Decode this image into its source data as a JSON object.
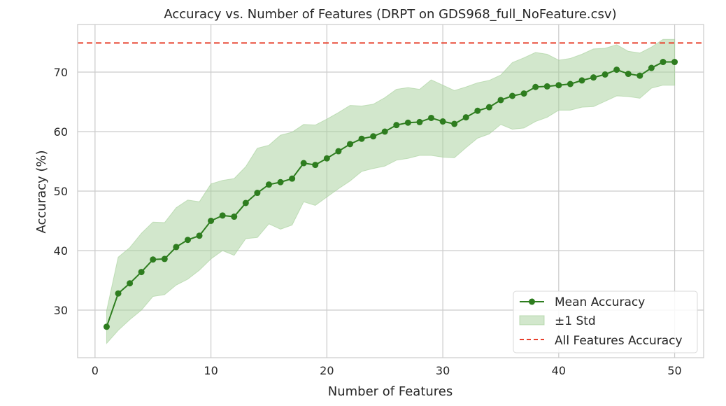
{
  "chart_data": {
    "type": "line",
    "title": "Accuracy vs. Number of Features (DRPT on GDS968_full_NoFeature.csv)",
    "xlabel": "Number of Features",
    "ylabel": "Accuracy (%)",
    "xlim": [
      -1.5,
      52.5
    ],
    "ylim": [
      22,
      78
    ],
    "xticks": [
      0,
      10,
      20,
      30,
      40,
      50
    ],
    "yticks": [
      30,
      40,
      50,
      60,
      70
    ],
    "grid": true,
    "legend_position": "bottom-right",
    "x": [
      1,
      2,
      3,
      4,
      5,
      6,
      7,
      8,
      9,
      10,
      11,
      12,
      13,
      14,
      15,
      16,
      17,
      18,
      19,
      20,
      21,
      22,
      23,
      24,
      25,
      26,
      27,
      28,
      29,
      30,
      31,
      32,
      33,
      34,
      35,
      36,
      37,
      38,
      39,
      40,
      41,
      42,
      43,
      44,
      45,
      46,
      47,
      48,
      49,
      50
    ],
    "series": [
      {
        "name": "Mean Accuracy",
        "color": "#2e7d1f",
        "marker": "circle",
        "values": [
          27.2,
          32.8,
          34.5,
          36.4,
          38.5,
          38.6,
          40.6,
          41.8,
          42.5,
          45.0,
          45.9,
          45.7,
          48.0,
          49.7,
          51.1,
          51.5,
          52.1,
          54.7,
          54.4,
          55.5,
          56.7,
          57.9,
          58.8,
          59.2,
          60.0,
          61.1,
          61.5,
          61.6,
          62.3,
          61.7,
          61.3,
          62.4,
          63.5,
          64.1,
          65.3,
          66.0,
          66.4,
          67.5,
          67.6,
          67.8,
          68.0,
          68.6,
          69.1,
          69.6,
          70.4,
          69.7,
          69.4,
          70.7,
          71.7,
          71.7
        ]
      },
      {
        "name": "±1 Std",
        "color": "#a5d09a",
        "type": "band",
        "lower": [
          24.4,
          26.6,
          28.4,
          30.0,
          32.3,
          32.6,
          34.2,
          35.2,
          36.7,
          38.6,
          40.0,
          39.2,
          42.0,
          42.2,
          44.5,
          43.6,
          44.3,
          48.2,
          47.6,
          49.0,
          50.4,
          51.7,
          53.3,
          53.8,
          54.2,
          55.2,
          55.5,
          56.0,
          56.0,
          55.7,
          55.6,
          57.3,
          58.9,
          59.6,
          61.2,
          60.4,
          60.6,
          61.7,
          62.4,
          63.6,
          63.6,
          64.1,
          64.2,
          65.1,
          66.0,
          65.9,
          65.6,
          67.3,
          67.8,
          67.8
        ],
        "upper": [
          29.9,
          38.9,
          40.5,
          42.9,
          44.8,
          44.7,
          47.2,
          48.5,
          48.2,
          51.2,
          51.8,
          52.1,
          54.1,
          57.2,
          57.7,
          59.4,
          59.9,
          61.2,
          61.1,
          62.1,
          63.2,
          64.4,
          64.3,
          64.6,
          65.7,
          67.1,
          67.4,
          67.1,
          68.7,
          67.8,
          66.9,
          67.5,
          68.2,
          68.6,
          69.5,
          71.6,
          72.4,
          73.3,
          73.0,
          72.0,
          72.3,
          73.0,
          73.9,
          74.0,
          74.6,
          73.5,
          73.2,
          74.2,
          75.5,
          75.5
        ]
      }
    ],
    "reference_line": {
      "name": "All Features Accuracy",
      "color": "#e8402c",
      "y": 74.9,
      "style": "dashed"
    }
  }
}
